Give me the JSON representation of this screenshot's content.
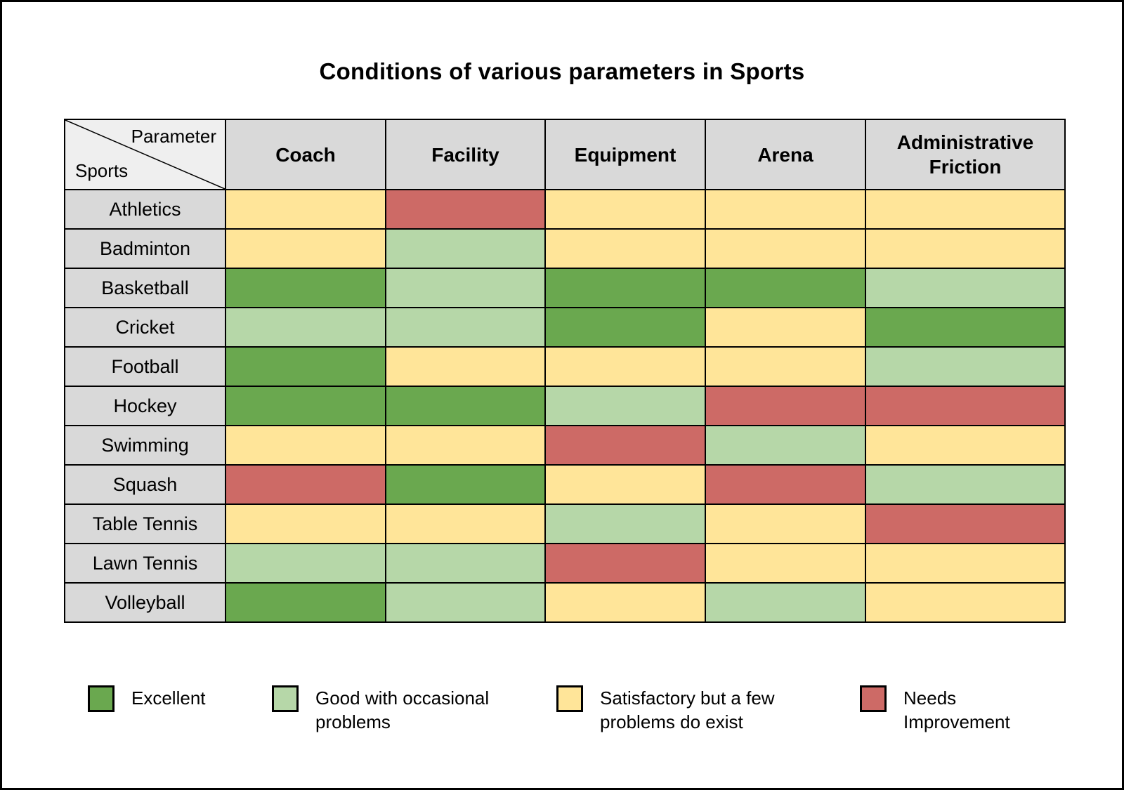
{
  "title": "Conditions of various parameters in Sports",
  "corner": {
    "parameter_label": "Parameter",
    "sports_label": "Sports"
  },
  "table": {
    "columns": [
      "Coach",
      "Facility",
      "Equipment",
      "Arena",
      "Administrative Friction"
    ],
    "rows": [
      "Athletics",
      "Badminton",
      "Basketball",
      "Cricket",
      "Football",
      "Hockey",
      "Swimming",
      "Squash",
      "Table Tennis",
      "Lawn Tennis",
      "Volleyball"
    ],
    "cells": [
      [
        "satisfactory",
        "needs_improvement",
        "satisfactory",
        "satisfactory",
        "satisfactory"
      ],
      [
        "satisfactory",
        "good",
        "satisfactory",
        "satisfactory",
        "satisfactory"
      ],
      [
        "excellent",
        "good",
        "excellent",
        "excellent",
        "good"
      ],
      [
        "good",
        "good",
        "excellent",
        "satisfactory",
        "excellent"
      ],
      [
        "excellent",
        "satisfactory",
        "satisfactory",
        "satisfactory",
        "good"
      ],
      [
        "excellent",
        "excellent",
        "good",
        "needs_improvement",
        "needs_improvement"
      ],
      [
        "satisfactory",
        "satisfactory",
        "needs_improvement",
        "good",
        "satisfactory"
      ],
      [
        "needs_improvement",
        "excellent",
        "satisfactory",
        "needs_improvement",
        "good"
      ],
      [
        "satisfactory",
        "satisfactory",
        "good",
        "satisfactory",
        "needs_improvement"
      ],
      [
        "good",
        "good",
        "needs_improvement",
        "satisfactory",
        "satisfactory"
      ],
      [
        "excellent",
        "good",
        "satisfactory",
        "good",
        "satisfactory"
      ]
    ]
  },
  "colors": {
    "excellent": "#6aa84f",
    "good": "#b6d7a8",
    "satisfactory": "#ffe599",
    "needs_improvement": "#cd6a66",
    "header_bg": "#d9d9d9",
    "corner_bg": "#efefef",
    "border": "#000000"
  },
  "legend": [
    {
      "key": "excellent",
      "label": "Excellent"
    },
    {
      "key": "good",
      "label": "Good with occasional problems"
    },
    {
      "key": "satisfactory",
      "label": "Satisfactory but a few problems do exist"
    },
    {
      "key": "needs_improvement",
      "label": "Needs Improvement"
    }
  ],
  "chart_data": {
    "type": "heatmap",
    "title": "Conditions of various parameters in Sports",
    "x_categories": [
      "Coach",
      "Facility",
      "Equipment",
      "Arena",
      "Administrative Friction"
    ],
    "y_categories": [
      "Athletics",
      "Badminton",
      "Basketball",
      "Cricket",
      "Football",
      "Hockey",
      "Swimming",
      "Squash",
      "Table Tennis",
      "Lawn Tennis",
      "Volleyball"
    ],
    "values": [
      [
        "satisfactory",
        "needs_improvement",
        "satisfactory",
        "satisfactory",
        "satisfactory"
      ],
      [
        "satisfactory",
        "good",
        "satisfactory",
        "satisfactory",
        "satisfactory"
      ],
      [
        "excellent",
        "good",
        "excellent",
        "excellent",
        "good"
      ],
      [
        "good",
        "good",
        "excellent",
        "satisfactory",
        "excellent"
      ],
      [
        "excellent",
        "satisfactory",
        "satisfactory",
        "satisfactory",
        "good"
      ],
      [
        "excellent",
        "excellent",
        "good",
        "needs_improvement",
        "needs_improvement"
      ],
      [
        "satisfactory",
        "satisfactory",
        "needs_improvement",
        "good",
        "satisfactory"
      ],
      [
        "needs_improvement",
        "excellent",
        "satisfactory",
        "needs_improvement",
        "good"
      ],
      [
        "satisfactory",
        "satisfactory",
        "good",
        "satisfactory",
        "needs_improvement"
      ],
      [
        "good",
        "good",
        "needs_improvement",
        "satisfactory",
        "satisfactory"
      ],
      [
        "excellent",
        "good",
        "satisfactory",
        "good",
        "satisfactory"
      ]
    ],
    "scale": {
      "excellent": {
        "label": "Excellent",
        "color": "#6aa84f"
      },
      "good": {
        "label": "Good with occasional problems",
        "color": "#b6d7a8"
      },
      "satisfactory": {
        "label": "Satisfactory but a few problems do exist",
        "color": "#ffe599"
      },
      "needs_improvement": {
        "label": "Needs Improvement",
        "color": "#cd6a66"
      }
    },
    "legend_position": "bottom",
    "grid": true
  }
}
